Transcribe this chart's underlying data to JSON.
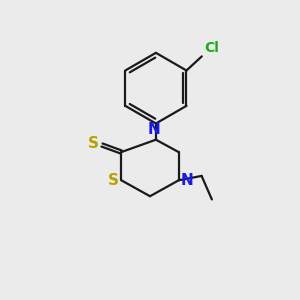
{
  "bg_color": "#ebebeb",
  "bond_color": "#1a1a1a",
  "N_color": "#1a1ae8",
  "S_color": "#b8a000",
  "Cl_color": "#1aaa1a",
  "bond_width": 1.6,
  "font_size_atom": 11,
  "font_size_cl": 10,
  "dbo": 0.05,
  "xlim": [
    0,
    10
  ],
  "ylim": [
    0,
    10
  ]
}
